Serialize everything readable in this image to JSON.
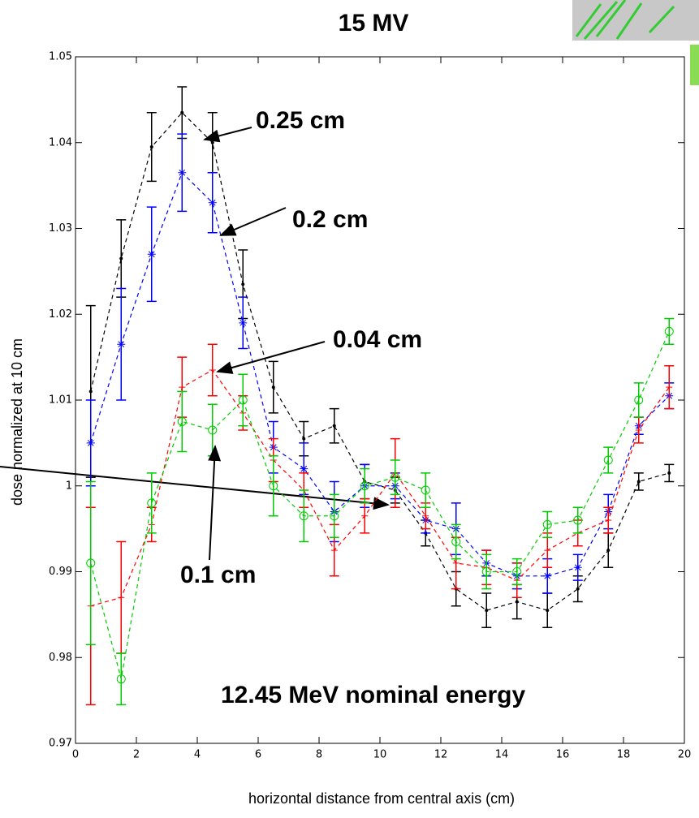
{
  "chart_data": {
    "type": "line",
    "title": "15 MV",
    "x_label": "horizontal distance from central axis (cm)",
    "y_label": "dose normalized at 10 cm",
    "annotations": [
      "12.45 MeV nominal energy"
    ],
    "x": [
      0.5,
      1.5,
      2.5,
      3.5,
      4.5,
      5.5,
      6.5,
      7.5,
      8.5,
      9.5,
      10.5,
      11.5,
      12.5,
      13.5,
      14.5,
      15.5,
      16.5,
      17.5,
      18.5,
      19.5
    ],
    "xlim": [
      0,
      20
    ],
    "xticks": [
      0,
      2,
      4,
      6,
      8,
      10,
      12,
      14,
      16,
      18,
      20
    ],
    "ylim": [
      0.97,
      1.05
    ],
    "yticks": [
      0.97,
      0.98,
      0.99,
      1,
      1.01,
      1.02,
      1.03,
      1.04,
      1.05
    ],
    "series": [
      {
        "name": "0.25 cm",
        "color": "#000000",
        "marker": "dot",
        "values": [
          1.011,
          1.0265,
          1.0395,
          1.0435,
          1.04,
          1.0235,
          1.0115,
          1.0055,
          1.007,
          1.0005,
          0.9995,
          0.9945,
          0.988,
          0.9855,
          0.9865,
          0.9855,
          0.988,
          0.9925,
          1.0005,
          1.0015
        ],
        "errors": [
          0.01,
          0.0045,
          0.004,
          0.003,
          0.0035,
          0.004,
          0.003,
          0.002,
          0.002,
          0.002,
          0.0015,
          0.0015,
          0.002,
          0.002,
          0.002,
          0.002,
          0.0015,
          0.002,
          0.001,
          0.001
        ]
      },
      {
        "name": "0.2 cm",
        "color": "#0000ff",
        "marker": "star",
        "values": [
          1.005,
          1.0165,
          1.027,
          1.0365,
          1.033,
          1.019,
          1.0045,
          1.002,
          0.997,
          1.0,
          1.0,
          0.996,
          0.995,
          0.991,
          0.9895,
          0.9895,
          0.9905,
          0.997,
          1.007,
          1.0105
        ],
        "errors": [
          0.005,
          0.0065,
          0.0055,
          0.0045,
          0.0035,
          0.003,
          0.003,
          0.003,
          0.0035,
          0.0025,
          0.0015,
          0.0015,
          0.003,
          0.0015,
          0.0015,
          0.002,
          0.0015,
          0.002,
          0.001,
          0.0015
        ]
      },
      {
        "name": "0.04 cm",
        "color": "#ff0000",
        "marker": "plus",
        "values": [
          0.986,
          0.987,
          0.9955,
          1.0115,
          1.0135,
          1.0085,
          1.003,
          0.9995,
          0.9925,
          0.9965,
          1.0015,
          0.9965,
          0.991,
          0.9905,
          0.989,
          0.9925,
          0.9945,
          0.996,
          1.0065,
          1.0115
        ],
        "errors": [
          0.0115,
          0.0065,
          0.002,
          0.0035,
          0.003,
          0.002,
          0.0025,
          0.002,
          0.003,
          0.002,
          0.004,
          0.0015,
          0.003,
          0.002,
          0.002,
          0.002,
          0.0015,
          0.0015,
          0.0015,
          0.0025
        ]
      },
      {
        "name": "0.1 cm",
        "color": "#00cc00",
        "marker": "circle",
        "values": [
          0.991,
          0.9775,
          0.998,
          1.0075,
          1.0065,
          1.01,
          1.0,
          0.9965,
          0.9965,
          1.0,
          1.001,
          0.9995,
          0.9935,
          0.99,
          0.99,
          0.9955,
          0.996,
          1.003,
          1.01,
          1.018
        ],
        "errors": [
          0.0095,
          0.003,
          0.0035,
          0.0035,
          0.003,
          0.003,
          0.0035,
          0.003,
          0.0025,
          0.002,
          0.002,
          0.002,
          0.002,
          0.002,
          0.0015,
          0.0015,
          0.0015,
          0.0015,
          0.002,
          0.0015
        ]
      }
    ]
  }
}
